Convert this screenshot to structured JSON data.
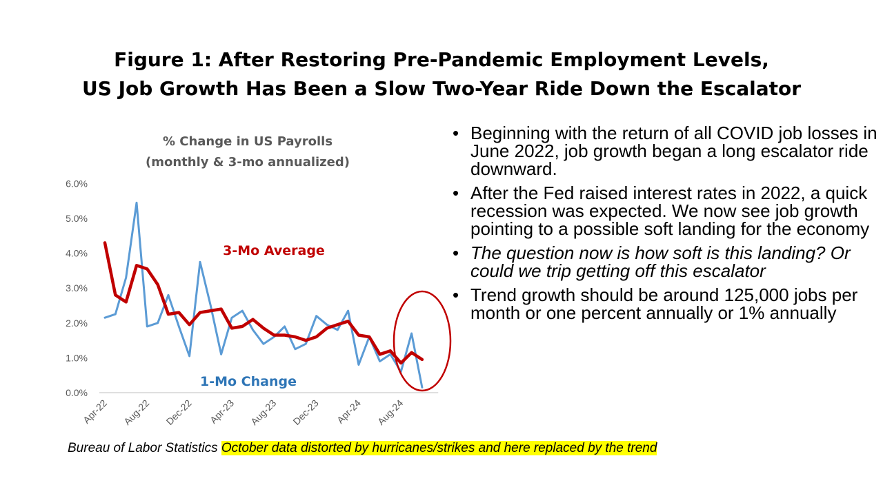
{
  "title": {
    "line1": "Figure 1: After Restoring Pre-Pandemic Employment Levels,",
    "line2": "US Job Growth Has Been a Slow Two-Year Ride Down the Escalator"
  },
  "bullets": [
    {
      "text": "Beginning with the return of all COVID job losses in June 2022, job growth began a long escalator ride downward.",
      "italic": false
    },
    {
      "text": "After the Fed raised interest rates in 2022, a quick recession was expected. We now see job growth pointing to a possible soft landing for the economy",
      "italic": false
    },
    {
      "text": "The question now is how soft is this landing? Or could we trip getting off this escalator",
      "italic": true
    },
    {
      "text": "Trend growth should be around 125,000 jobs per month or one percent annually or 1% annually",
      "italic": false
    }
  ],
  "source": {
    "text": "Bureau of Labor Statistics ",
    "highlight": "October data distorted by hurricanes/strikes and here replaced by the trend"
  },
  "colors": {
    "one_month": "#5B9BD5",
    "three_month": "#C00000",
    "axis_text": "#595959",
    "highlight": "#FFFF00"
  },
  "chart_data": {
    "type": "line",
    "title": "% Change in US Payrolls",
    "subtitle": "(monthly & 3-mo annualized)",
    "categories": [
      "Apr-22",
      "May-22",
      "Jun-22",
      "Jul-22",
      "Aug-22",
      "Sep-22",
      "Oct-22",
      "Nov-22",
      "Dec-22",
      "Jan-23",
      "Feb-23",
      "Mar-23",
      "Apr-23",
      "May-23",
      "Jun-23",
      "Jul-23",
      "Aug-23",
      "Sep-23",
      "Oct-23",
      "Nov-23",
      "Dec-23",
      "Jan-24",
      "Feb-24",
      "Mar-24",
      "Apr-24",
      "May-24",
      "Jun-24",
      "Jul-24",
      "Aug-24",
      "Sep-24",
      "Oct-24",
      "Nov-24"
    ],
    "x_tick_labels": [
      "Apr-22",
      "Aug-22",
      "Dec-22",
      "Apr-23",
      "Aug-23",
      "Dec-23",
      "Apr-24",
      "Aug-24"
    ],
    "ylim": [
      0,
      6
    ],
    "y_ticks": [
      "0.0%",
      "1.0%",
      "2.0%",
      "3.0%",
      "4.0%",
      "5.0%",
      "6.0%"
    ],
    "xlabel": "",
    "ylabel": "",
    "grid": false,
    "series": [
      {
        "name": "1-Mo Change",
        "values": [
          2.15,
          2.25,
          3.3,
          5.45,
          1.9,
          2.0,
          2.8,
          1.9,
          1.05,
          3.75,
          2.5,
          1.1,
          2.15,
          2.35,
          1.8,
          1.4,
          1.6,
          1.9,
          1.25,
          1.4,
          2.2,
          1.95,
          1.8,
          2.35,
          0.8,
          1.6,
          0.9,
          1.1,
          0.6,
          1.7,
          0.15,
          null
        ]
      },
      {
        "name": "3-Mo Average",
        "values": [
          4.3,
          2.8,
          2.6,
          3.65,
          3.55,
          3.1,
          2.25,
          2.3,
          1.95,
          2.3,
          2.35,
          2.4,
          1.85,
          1.9,
          2.1,
          1.85,
          1.65,
          1.65,
          1.6,
          1.5,
          1.6,
          1.85,
          1.95,
          2.05,
          1.65,
          1.6,
          1.1,
          1.2,
          0.85,
          1.15,
          0.95,
          null
        ]
      }
    ]
  }
}
